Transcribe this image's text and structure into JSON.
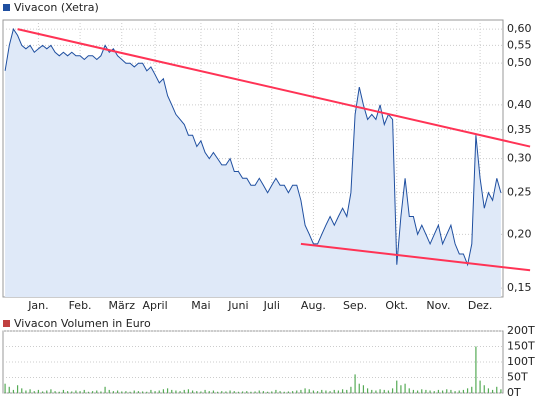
{
  "chart_data": [
    {
      "type": "line",
      "title": "Vivacon (Xetra)",
      "scale": "log",
      "grid": true,
      "area_color": "#dfe9f8",
      "categories": [
        null,
        null,
        null,
        null,
        null,
        null,
        null,
        null,
        "Jan.",
        null,
        null,
        null,
        null,
        null,
        null,
        null,
        null,
        null,
        "Feb.",
        null,
        null,
        null,
        null,
        null,
        null,
        null,
        null,
        null,
        "März",
        null,
        null,
        null,
        null,
        null,
        null,
        null,
        "April",
        null,
        null,
        null,
        null,
        null,
        null,
        null,
        null,
        null,
        null,
        "Mai",
        null,
        null,
        null,
        null,
        null,
        null,
        null,
        null,
        "Juni",
        null,
        null,
        null,
        null,
        null,
        null,
        null,
        "Juli",
        null,
        null,
        null,
        null,
        null,
        null,
        null,
        null,
        null,
        "Aug.",
        null,
        null,
        null,
        null,
        null,
        null,
        null,
        null,
        null,
        "Sep.",
        null,
        null,
        null,
        null,
        null,
        null,
        null,
        null,
        null,
        "Okt.",
        null,
        null,
        null,
        null,
        null,
        null,
        null,
        null,
        null,
        "Nov.",
        null,
        null,
        null,
        null,
        null,
        null,
        null,
        null,
        null,
        "Dez.",
        null,
        null,
        null,
        null,
        null
      ],
      "series": [
        {
          "name": "Vivacon (Xetra)",
          "color": "#1f4fa0",
          "values": [
            0.48,
            0.55,
            0.6,
            0.58,
            0.55,
            0.54,
            0.55,
            0.53,
            0.54,
            0.55,
            0.54,
            0.55,
            0.53,
            0.52,
            0.53,
            0.52,
            0.53,
            0.52,
            0.52,
            0.51,
            0.52,
            0.52,
            0.51,
            0.52,
            0.55,
            0.53,
            0.54,
            0.52,
            0.51,
            0.5,
            0.5,
            0.49,
            0.5,
            0.5,
            0.48,
            0.49,
            0.47,
            0.45,
            0.46,
            0.42,
            0.4,
            0.38,
            0.37,
            0.36,
            0.34,
            0.34,
            0.32,
            0.33,
            0.31,
            0.3,
            0.31,
            0.3,
            0.29,
            0.29,
            0.3,
            0.28,
            0.28,
            0.27,
            0.27,
            0.26,
            0.26,
            0.27,
            0.26,
            0.25,
            0.26,
            0.27,
            0.26,
            0.26,
            0.25,
            0.26,
            0.26,
            0.24,
            0.21,
            0.2,
            0.19,
            0.19,
            0.2,
            0.21,
            0.22,
            0.21,
            0.22,
            0.23,
            0.22,
            0.25,
            0.38,
            0.44,
            0.4,
            0.37,
            0.38,
            0.37,
            0.4,
            0.36,
            0.38,
            0.37,
            0.17,
            0.22,
            0.27,
            0.22,
            0.22,
            0.2,
            0.21,
            0.2,
            0.19,
            0.2,
            0.21,
            0.19,
            0.2,
            0.21,
            0.19,
            0.18,
            0.18,
            0.17,
            0.19,
            0.34,
            0.27,
            0.23,
            0.25,
            0.24,
            0.27,
            0.25
          ]
        }
      ],
      "trend_lines": [
        {
          "color": "#ff3355",
          "points": [
            [
              3,
              0.6
            ],
            [
              126,
              0.32
            ]
          ]
        },
        {
          "color": "#ff3355",
          "points": [
            [
              71,
              0.19
            ],
            [
              126,
              0.165
            ]
          ]
        }
      ],
      "ylim": [
        0.143,
        0.63
      ],
      "yticks": [
        {
          "value": 0.15,
          "label": "0,15"
        },
        {
          "value": 0.2,
          "label": "0,20"
        },
        {
          "value": 0.25,
          "label": "0,25"
        },
        {
          "value": 0.3,
          "label": "0,30"
        },
        {
          "value": 0.35,
          "label": "0,35"
        },
        {
          "value": 0.4,
          "label": "0,40"
        },
        {
          "value": 0.5,
          "label": "0,50"
        },
        {
          "value": 0.55,
          "label": "0,55"
        },
        {
          "value": 0.6,
          "label": "0,60"
        }
      ]
    },
    {
      "type": "bar",
      "title": "Vivacon Volumen in Euro",
      "grid": true,
      "series": [
        {
          "name": "Vivacon Volumen in Euro",
          "color": "#55aa55",
          "values": [
            30,
            20,
            10,
            25,
            15,
            8,
            12,
            6,
            10,
            5,
            8,
            12,
            6,
            4,
            10,
            6,
            5,
            8,
            6,
            10,
            4,
            6,
            8,
            5,
            20,
            10,
            6,
            8,
            5,
            6,
            4,
            8,
            6,
            5,
            4,
            10,
            6,
            8,
            12,
            15,
            10,
            8,
            6,
            10,
            12,
            8,
            6,
            5,
            10,
            6,
            8,
            4,
            6,
            5,
            8,
            6,
            4,
            5,
            6,
            4,
            5,
            8,
            6,
            4,
            5,
            10,
            6,
            4,
            5,
            6,
            8,
            10,
            15,
            12,
            8,
            6,
            10,
            8,
            6,
            10,
            8,
            12,
            10,
            20,
            60,
            30,
            25,
            15,
            10,
            8,
            12,
            10,
            8,
            15,
            40,
            25,
            30,
            15,
            10,
            8,
            12,
            10,
            8,
            6,
            10,
            8,
            12,
            10,
            6,
            8,
            10,
            15,
            20,
            150,
            40,
            25,
            15,
            10,
            20,
            12
          ]
        }
      ],
      "ylim": [
        0,
        200
      ],
      "yticks": [
        {
          "value": 0,
          "label": "0T"
        },
        {
          "value": 50,
          "label": "50T"
        },
        {
          "value": 100,
          "label": "100T"
        },
        {
          "value": 150,
          "label": "150T"
        },
        {
          "value": 200,
          "label": "200T"
        }
      ]
    }
  ]
}
